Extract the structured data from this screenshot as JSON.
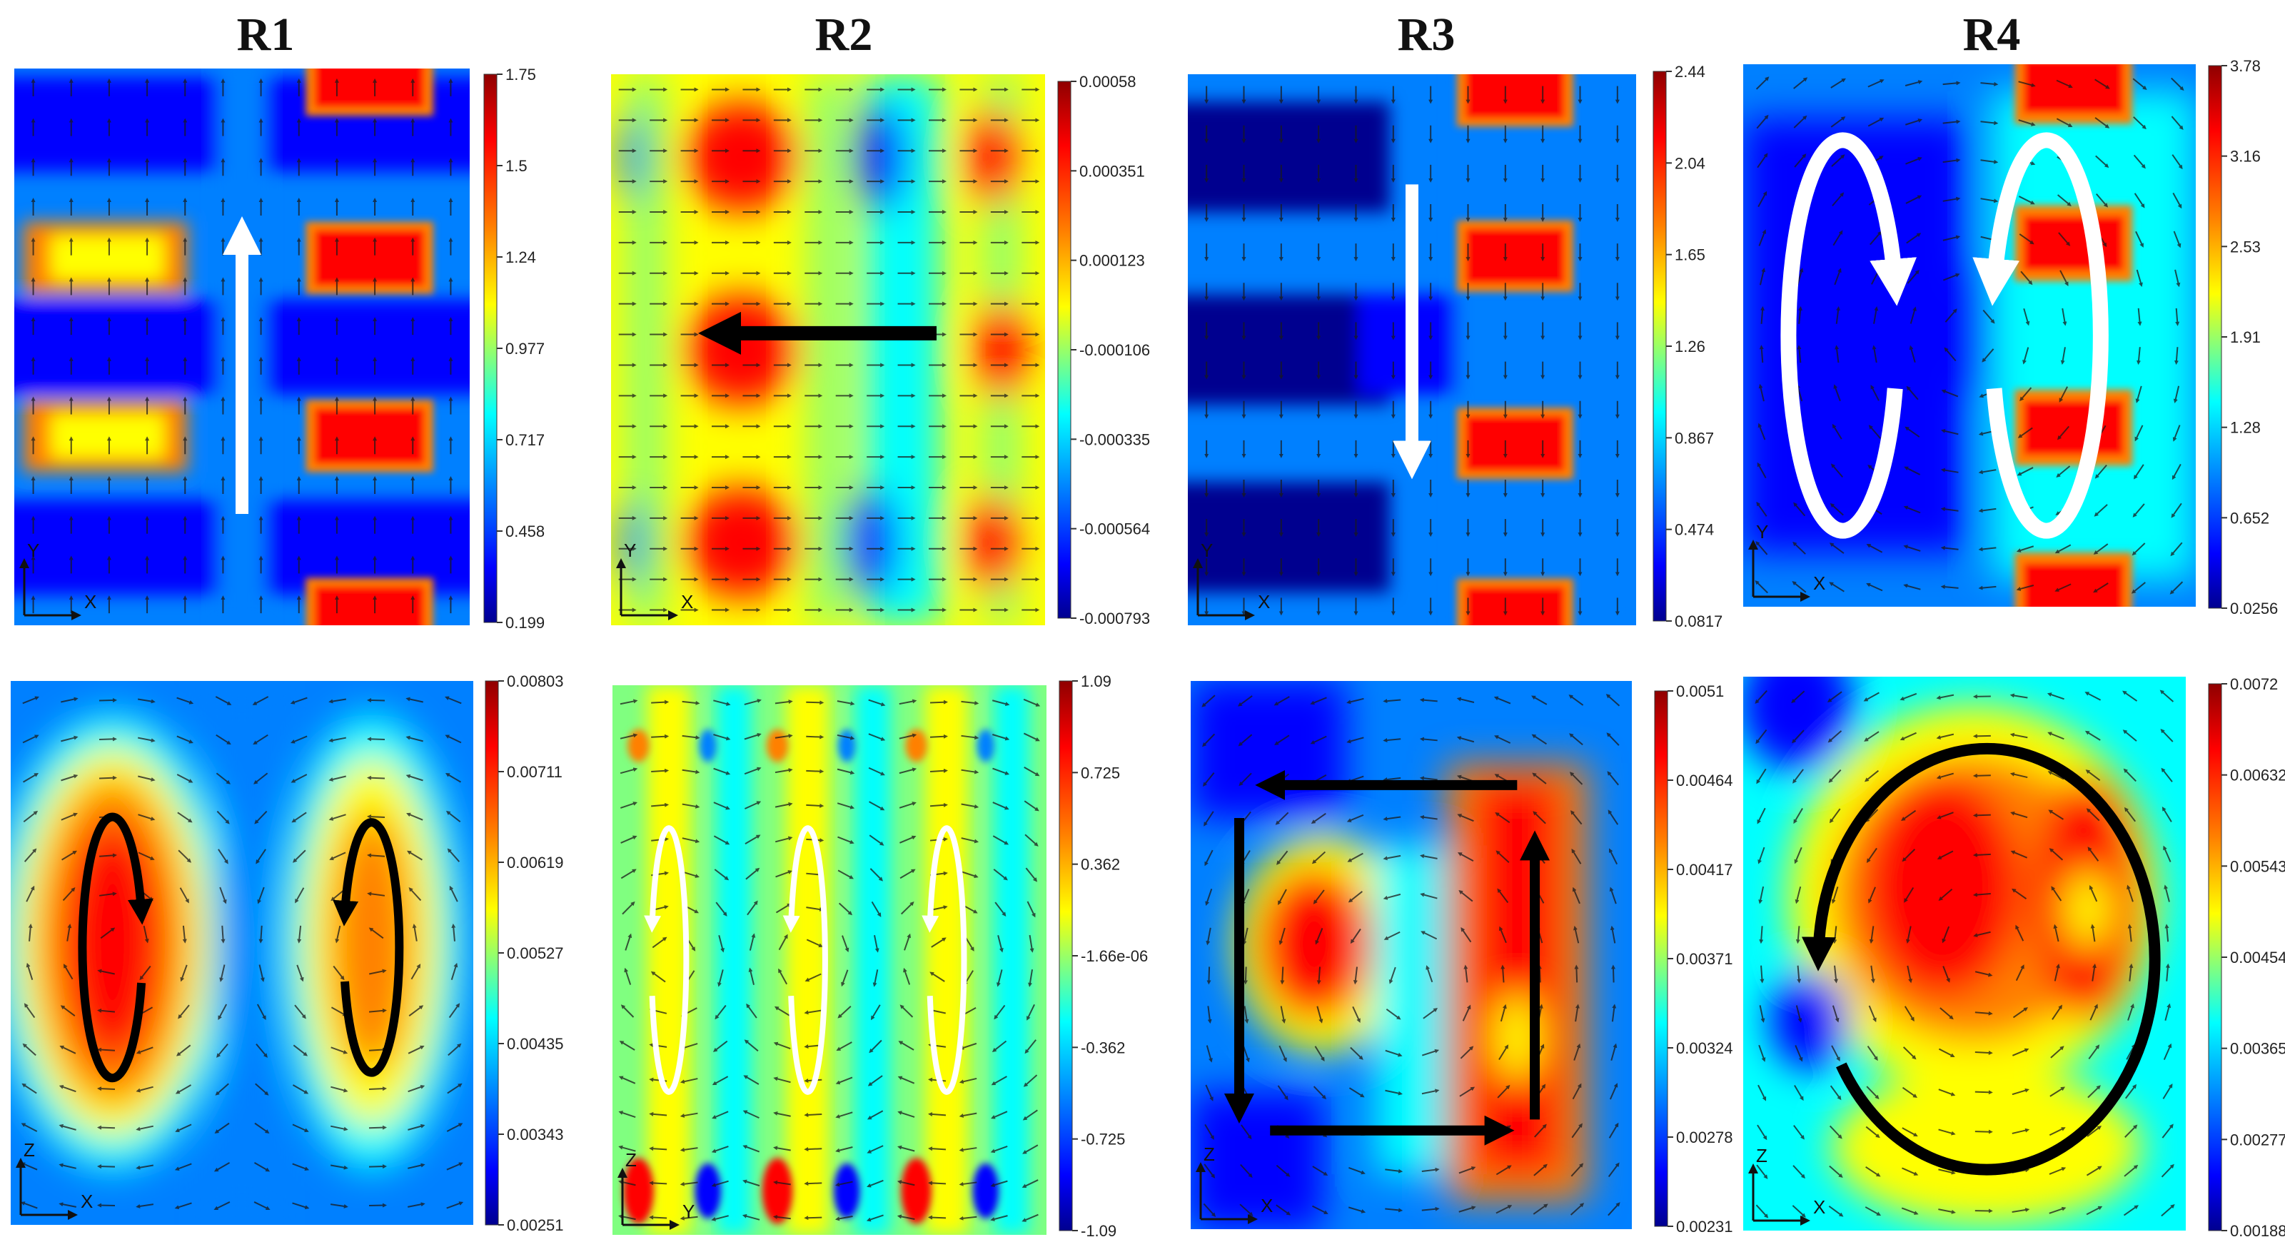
{
  "figure": {
    "columns": [
      "R1",
      "R2",
      "R3",
      "R4"
    ],
    "colors": {
      "colormap": [
        "#00008f",
        "#0000ff",
        "#0080ff",
        "#00ffff",
        "#80ff80",
        "#ffff00",
        "#ff8000",
        "#ff0000",
        "#8f0000"
      ],
      "arrow_light": "#ffffff",
      "arrow_dark": "#000000",
      "flow_vector": "#1a1a1a"
    },
    "panels": [
      {
        "id": "r1-top",
        "column": "R1",
        "row": "top",
        "title": "R1",
        "axes": [
          "Y",
          "X"
        ],
        "pattern": "bands",
        "colorbar": [
          "1.75",
          "1.5",
          "1.24",
          "0.977",
          "0.717",
          "0.458",
          "0.199"
        ],
        "annotation": "white vertical arrow pointing up"
      },
      {
        "id": "r2-top",
        "column": "R2",
        "row": "top",
        "title": "R2",
        "axes": [
          "Y",
          "X"
        ],
        "pattern": "cells",
        "colorbar": [
          "0.00058",
          "0.000351",
          "0.000123",
          "-0.000106",
          "-0.000335",
          "-0.000564",
          "-0.000793"
        ],
        "annotation": "black horizontal arrow pointing left"
      },
      {
        "id": "r3-top",
        "column": "R3",
        "row": "top",
        "title": "R3",
        "axes": [
          "Y",
          "X"
        ],
        "pattern": "bands",
        "colorbar": [
          "2.44",
          "2.04",
          "1.65",
          "1.26",
          "0.867",
          "0.474",
          "0.0817"
        ],
        "annotation": "white vertical arrow pointing down"
      },
      {
        "id": "r4-top",
        "column": "R4",
        "row": "top",
        "title": "R4",
        "axes": [
          "Y",
          "X"
        ],
        "pattern": "bands",
        "colorbar": [
          "3.78",
          "3.16",
          "2.53",
          "1.91",
          "1.28",
          "0.652",
          "0.0256"
        ],
        "annotation": "two white circulating arrows"
      },
      {
        "id": "r1-bottom",
        "column": "R1",
        "row": "bottom",
        "axes": [
          "Z",
          "X"
        ],
        "pattern": "vortex-pair",
        "colorbar": [
          "0.00803",
          "0.00711",
          "0.00619",
          "0.00527",
          "0.00435",
          "0.00343",
          "0.00251"
        ],
        "annotation": "two black circulation loops"
      },
      {
        "id": "r2-bottom",
        "column": "R2",
        "row": "bottom",
        "axes": [
          "Z",
          "Y"
        ],
        "pattern": "vortex-triple",
        "colorbar": [
          "1.09",
          "0.725",
          "0.362",
          "-1.66e-06",
          "-0.362",
          "-0.725",
          "-1.09"
        ],
        "annotation": "three white circulation loops"
      },
      {
        "id": "r3-bottom",
        "column": "R3",
        "row": "bottom",
        "axes": [
          "Z",
          "X"
        ],
        "pattern": "vortex-square",
        "colorbar": [
          "0.0051",
          "0.00464",
          "0.00417",
          "0.00371",
          "0.00324",
          "0.00278",
          "0.00231"
        ],
        "annotation": "black rectangular circulation"
      },
      {
        "id": "r4-bottom",
        "column": "R4",
        "row": "bottom",
        "axes": [
          "Z",
          "X"
        ],
        "pattern": "vortex-single",
        "colorbar": [
          "0.0072",
          "0.00632",
          "0.00543",
          "0.00454",
          "0.00365",
          "0.00277",
          "0.00188"
        ],
        "annotation": "single large black circulation loop"
      }
    ]
  }
}
